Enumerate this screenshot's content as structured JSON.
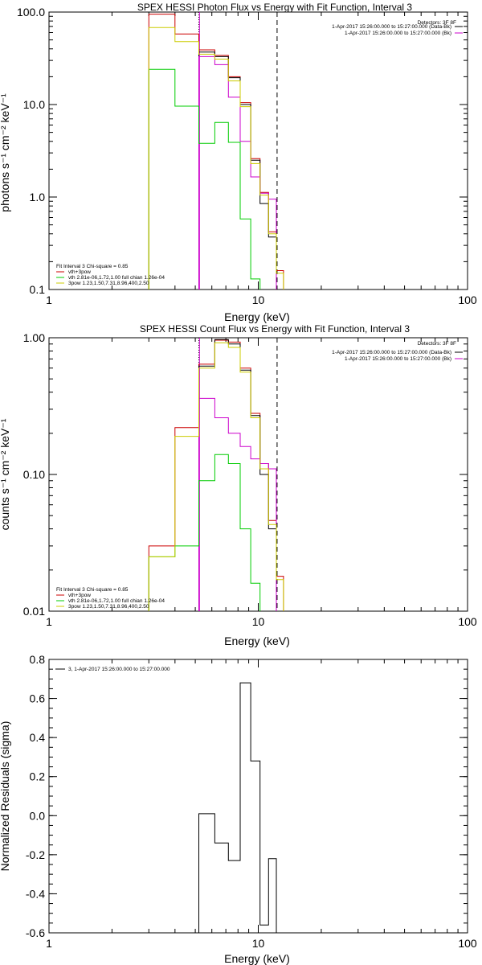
{
  "chart_data": [
    {
      "id": "photon",
      "type": "line",
      "title": "SPEX HESSI Photon Flux vs Energy with Fit Function, Interval 3",
      "xlabel": "Energy (keV)",
      "ylabel": "photons s⁻¹ cm⁻² keV⁻¹",
      "xscale": "log",
      "yscale": "log",
      "xlim": [
        1,
        100
      ],
      "ylim": [
        0.1,
        100
      ],
      "x_ticks": [
        {
          "v": 1,
          "label": "1"
        },
        {
          "v": 10,
          "label": "10"
        },
        {
          "v": 100,
          "label": "100"
        }
      ],
      "y_ticks": [
        {
          "v": 0.1,
          "label": "0.1"
        },
        {
          "v": 1,
          "label": "1.0"
        },
        {
          "v": 10,
          "label": "10.0"
        },
        {
          "v": 100,
          "label": "100.0"
        }
      ],
      "vlines": [
        {
          "x": 5.2,
          "style": "dotted",
          "color": "#000000"
        },
        {
          "x": 5.2,
          "style": "solid",
          "color": "#cc00cc"
        },
        {
          "x": 12.3,
          "style": "dashed",
          "color": "#000000"
        }
      ],
      "legend_top": {
        "header": "Detectors: 3F 8F",
        "entries": [
          {
            "label": "1-Apr-2017 15:26:00.000 to 15:27:00.000 (Data-Bk)",
            "color": "#000000"
          },
          {
            "label": "1-Apr-2017 15:26:00.000 to 15:27:00.000 (Bk)",
            "color": "#cc00cc"
          }
        ]
      },
      "legend_bottom": {
        "header": "Fit Interval 3   Chi-square = 0.85",
        "entries": [
          {
            "label": "vth+3pow",
            "color": "#cc0000"
          },
          {
            "label": "vth 2.81e-06,1.72,1.00   full chian 1.26e-04",
            "color": "#00cc00"
          },
          {
            "label": "3pow 1.23,1.50,7.31,8.96,400,2.50",
            "color": "#cccc00"
          }
        ]
      },
      "series": [
        {
          "color": "#cc0000",
          "steps": [
            [
              3,
              4,
              95
            ],
            [
              4,
              5.2,
              58
            ],
            [
              5.2,
              6.2,
              39
            ],
            [
              6.2,
              7.2,
              34
            ],
            [
              7.2,
              8.2,
              20
            ],
            [
              8.2,
              9.2,
              10.5
            ],
            [
              9.2,
              10.2,
              2.6
            ],
            [
              10.2,
              11.2,
              1.12
            ],
            [
              11.2,
              12.2,
              0.42
            ],
            [
              12.2,
              13.2,
              0.16
            ]
          ]
        },
        {
          "color": "#000000",
          "steps": [
            [
              5.2,
              6.2,
              37
            ],
            [
              6.2,
              7.2,
              33
            ],
            [
              7.2,
              8.2,
              19.5
            ],
            [
              8.2,
              9.2,
              10
            ],
            [
              9.2,
              10.2,
              2.5
            ],
            [
              10.2,
              11.2,
              0.85
            ],
            [
              11.2,
              12.2,
              0.37
            ]
          ]
        },
        {
          "color": "#cc00cc",
          "steps": [
            [
              5.2,
              6.2,
              33
            ],
            [
              6.2,
              7.2,
              27
            ],
            [
              7.2,
              8.2,
              12
            ],
            [
              8.2,
              9.2,
              4
            ],
            [
              9.2,
              10.2,
              1.65
            ],
            [
              10.2,
              11.2,
              1.1
            ],
            [
              11.2,
              12.2,
              0.95
            ]
          ]
        },
        {
          "color": "#00cc00",
          "steps": [
            [
              3,
              4,
              24
            ],
            [
              4,
              5.2,
              9.6
            ],
            [
              5.2,
              6.2,
              3.8
            ],
            [
              6.2,
              7.2,
              6.4
            ],
            [
              7.2,
              8.2,
              3.9
            ],
            [
              8.2,
              9.2,
              0.58
            ],
            [
              9.2,
              10.2,
              0.13
            ]
          ]
        },
        {
          "color": "#cccc00",
          "steps": [
            [
              3,
              4,
              68
            ],
            [
              4,
              5.2,
              48
            ],
            [
              5.2,
              6.2,
              35
            ],
            [
              6.2,
              7.2,
              31
            ],
            [
              7.2,
              8.2,
              18
            ],
            [
              8.2,
              9.2,
              9.5
            ],
            [
              9.2,
              10.2,
              2.3
            ],
            [
              10.2,
              11.2,
              1.05
            ],
            [
              11.2,
              12.2,
              0.4
            ],
            [
              12.2,
              13.2,
              0.15
            ]
          ]
        }
      ]
    },
    {
      "id": "count",
      "type": "line",
      "title": "SPEX HESSI Count Flux vs Energy with Fit Function, Interval 3",
      "xlabel": "Energy (keV)",
      "ylabel": "counts s⁻¹ cm⁻² keV⁻¹",
      "xscale": "log",
      "yscale": "log",
      "xlim": [
        1,
        100
      ],
      "ylim": [
        0.01,
        1
      ],
      "x_ticks": [
        {
          "v": 1,
          "label": "1"
        },
        {
          "v": 10,
          "label": "10"
        },
        {
          "v": 100,
          "label": "100"
        }
      ],
      "y_ticks": [
        {
          "v": 0.01,
          "label": "0.01"
        },
        {
          "v": 0.1,
          "label": "0.10"
        },
        {
          "v": 1,
          "label": "1.00"
        }
      ],
      "vlines": [
        {
          "x": 5.2,
          "style": "dotted",
          "color": "#000000"
        },
        {
          "x": 5.2,
          "style": "solid",
          "color": "#cc00cc"
        },
        {
          "x": 12.3,
          "style": "dashed",
          "color": "#000000"
        }
      ],
      "legend_top": {
        "header": "Detectors: 3F 8F",
        "entries": [
          {
            "label": "1-Apr-2017 15:26:00.000 to 15:27:00.000 (Data-Bk)",
            "color": "#000000"
          },
          {
            "label": "1-Apr-2017 15:26:00.000 to 15:27:00.000 (Bk)",
            "color": "#cc00cc"
          }
        ]
      },
      "legend_bottom": {
        "header": "Fit Interval 3   Chi-square = 0.85",
        "entries": [
          {
            "label": "vth+3pow",
            "color": "#cc0000"
          },
          {
            "label": "vth 2.81e-06,1.72,1.00   full chian 1.26e-04",
            "color": "#00cc00"
          },
          {
            "label": "3pow 1.23,1.50,7.31,8.96,400,2.50",
            "color": "#cccc00"
          }
        ]
      },
      "series": [
        {
          "color": "#cc0000",
          "steps": [
            [
              3,
              4,
              0.03
            ],
            [
              4,
              5.2,
              0.22
            ],
            [
              5.2,
              6.2,
              0.64
            ],
            [
              6.2,
              7.2,
              0.96
            ],
            [
              7.2,
              8.2,
              0.93
            ],
            [
              8.2,
              9.2,
              0.6
            ],
            [
              9.2,
              10.2,
              0.28
            ],
            [
              10.2,
              11.2,
              0.12
            ],
            [
              11.2,
              12.2,
              0.046
            ],
            [
              12.2,
              13.2,
              0.018
            ]
          ]
        },
        {
          "color": "#000000",
          "steps": [
            [
              5.2,
              6.2,
              0.62
            ],
            [
              6.2,
              7.2,
              0.97
            ],
            [
              7.2,
              8.2,
              0.9
            ],
            [
              8.2,
              9.2,
              0.58
            ],
            [
              9.2,
              10.2,
              0.27
            ],
            [
              10.2,
              11.2,
              0.1
            ],
            [
              11.2,
              12.2,
              0.04
            ]
          ]
        },
        {
          "color": "#cc00cc",
          "steps": [
            [
              5.2,
              6.2,
              0.36
            ],
            [
              6.2,
              7.2,
              0.26
            ],
            [
              7.2,
              8.2,
              0.2
            ],
            [
              8.2,
              9.2,
              0.16
            ],
            [
              9.2,
              10.2,
              0.13
            ],
            [
              10.2,
              11.2,
              0.12
            ],
            [
              11.2,
              12.2,
              0.11
            ]
          ]
        },
        {
          "color": "#00cc00",
          "steps": [
            [
              3,
              4,
              0.025
            ],
            [
              4,
              5.2,
              0.03
            ],
            [
              5.2,
              6.2,
              0.09
            ],
            [
              6.2,
              7.2,
              0.14
            ],
            [
              7.2,
              8.2,
              0.12
            ],
            [
              8.2,
              9.2,
              0.04
            ],
            [
              9.2,
              10.2,
              0.016
            ]
          ]
        },
        {
          "color": "#cccc00",
          "steps": [
            [
              3,
              4,
              0.025
            ],
            [
              4,
              5.2,
              0.19
            ],
            [
              5.2,
              6.2,
              0.6
            ],
            [
              6.2,
              7.2,
              0.92
            ],
            [
              7.2,
              8.2,
              0.85
            ],
            [
              8.2,
              9.2,
              0.56
            ],
            [
              9.2,
              10.2,
              0.26
            ],
            [
              10.2,
              11.2,
              0.11
            ],
            [
              11.2,
              12.2,
              0.043
            ],
            [
              12.2,
              13.2,
              0.017
            ]
          ]
        }
      ]
    },
    {
      "id": "residuals",
      "type": "line",
      "title": "",
      "xlabel": "Energy (keV)",
      "ylabel": "Normalized Residuals (sigma)",
      "xscale": "log",
      "yscale": "linear",
      "xlim": [
        1,
        100
      ],
      "ylim": [
        -0.6,
        0.8
      ],
      "x_ticks": [
        {
          "v": 1,
          "label": "1"
        },
        {
          "v": 10,
          "label": "10"
        },
        {
          "v": 100,
          "label": "100"
        }
      ],
      "y_ticks": [
        {
          "v": -0.6,
          "label": "-0.6"
        },
        {
          "v": -0.4,
          "label": "-0.4"
        },
        {
          "v": -0.2,
          "label": "-0.2"
        },
        {
          "v": 0,
          "label": "0.0"
        },
        {
          "v": 0.2,
          "label": "0.2"
        },
        {
          "v": 0.4,
          "label": "0.4"
        },
        {
          "v": 0.6,
          "label": "0.6"
        },
        {
          "v": 0.8,
          "label": "0.8"
        }
      ],
      "legend_top": {
        "header": "",
        "entries": [
          {
            "label": "3, 1-Apr-2017 15:26:00.000 to 15:27:00.000",
            "color": "#000000"
          }
        ]
      },
      "series": [
        {
          "color": "#000000",
          "steps": [
            [
              5.2,
              6.2,
              0.01
            ],
            [
              6.2,
              7.2,
              -0.14
            ],
            [
              7.2,
              8.2,
              -0.23
            ],
            [
              8.2,
              9.2,
              0.68
            ],
            [
              9.2,
              10.2,
              0.28
            ],
            [
              10.2,
              11.2,
              -0.56
            ],
            [
              11.2,
              12.2,
              -0.22
            ]
          ]
        }
      ]
    }
  ]
}
